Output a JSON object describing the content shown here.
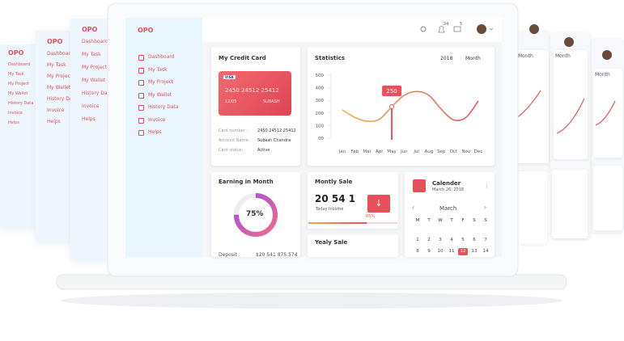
{
  "brand": "OPO",
  "menu": [
    "Dashboard",
    "My Task",
    "My Project",
    "My Wallet",
    "History Data",
    "Invoice",
    "Helps"
  ],
  "header": {
    "notifications": "24",
    "messages": "5"
  },
  "credit_card": {
    "title": "My Credit Card",
    "card": {
      "brand": "VISA",
      "number": "2450 24512 25412",
      "expiry": "12/05",
      "holder": "SUBASH"
    },
    "details": [
      {
        "label": "Card number :",
        "value": "2450 24512 25412"
      },
      {
        "label": "Account Name:",
        "value": "Subash Chandra"
      },
      {
        "label": "Card status:",
        "value": "Active"
      }
    ]
  },
  "statistics": {
    "title": "Statistics",
    "year": "2018",
    "period": "Month",
    "categories": [
      "Jan",
      "Feb",
      "Mar",
      "Apr",
      "May",
      "Jun",
      "Jul",
      "Aug",
      "Sep",
      "Oct",
      "Nov",
      "Dec"
    ],
    "values": [
      225,
      165,
      135,
      150,
      250,
      340,
      370,
      340,
      230,
      145,
      165,
      295
    ],
    "ylim": [
      0,
      500
    ],
    "yticks": [
      {
        "value": 0,
        "label": "00"
      },
      100,
      200,
      300,
      400,
      500
    ]
  },
  "earning": {
    "title": "Earning in Month",
    "percent": 75,
    "percent_label": "75%",
    "deposit_label": "Deposit :",
    "deposit_value": "$20 541 875.574"
  },
  "monthly_sale": {
    "title": "Montly Sale",
    "amount": "20 54 1",
    "caption": "Today Income",
    "progress": 65,
    "progress_label": "65%"
  },
  "yearly_sale": {
    "title": "Yealy Sale"
  },
  "calendar": {
    "title": "Calender",
    "date": "March 26, 2018",
    "month": "March",
    "weekdays": [
      "M",
      "T",
      "W",
      "T",
      "F",
      "S",
      "S"
    ],
    "weeks": [
      [
        1,
        2,
        3,
        4,
        5,
        6,
        7
      ],
      [
        8,
        9,
        10,
        11,
        12,
        13,
        14
      ]
    ],
    "selected": 12
  }
}
